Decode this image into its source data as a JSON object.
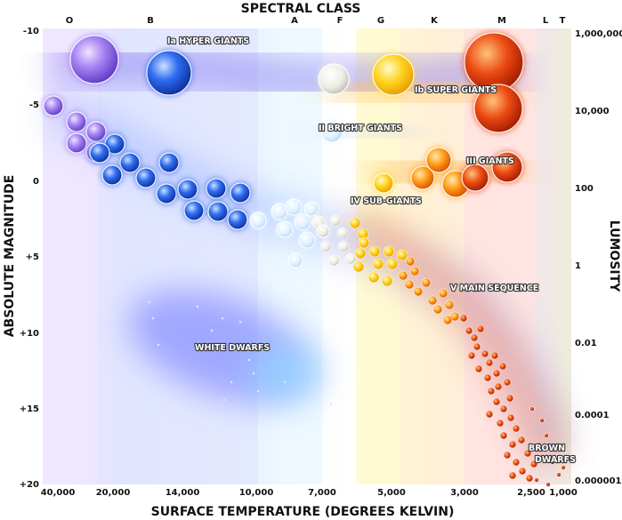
{
  "diagram": {
    "top_title": "SPECTRAL CLASS",
    "bottom_title": "SURFACE TEMPERATURE (DEGREES KELVIN)",
    "left_title": "ABSOLUTE MAGNITUDE",
    "right_title": "LUMOSITY",
    "spectral_classes": [
      "O",
      "B",
      "A",
      "F",
      "G",
      "K",
      "M",
      "L",
      "T"
    ],
    "temperature_ticks": [
      "40,000",
      "20,000",
      "14,000",
      "10,000",
      "7,000",
      "5,000",
      "3,000",
      "2,500",
      "1,000"
    ],
    "magnitude_ticks": [
      "-10",
      "-5",
      "0",
      "+5",
      "+10",
      "+15",
      "+20"
    ],
    "luminosity_ticks": [
      "1,000,000",
      "10,000",
      "100",
      "1",
      "0.01",
      "0.0001",
      "0.000001"
    ],
    "regions": {
      "hyper_giants": "Ia HYPER GIANTS",
      "super_giants": "Ib SUPER GIANTS",
      "bright_giants": "II BRIGHT GIANTS",
      "giants": "III GIANTS",
      "sub_giants": "IV SUB-GIANTS",
      "main_sequence": "V MAIN SEQUENCE",
      "white_dwarfs": "WHITE DWARFS",
      "brown_dwarfs_line1": "BROWN",
      "brown_dwarfs_line2": "DWARFS"
    },
    "colors": {
      "O": "#9a72ee",
      "B": "#2b5fe0",
      "A": "#e6f4ff",
      "F": "#f2f2ec",
      "G": "#ffd21e",
      "K": "#ff9a14",
      "M": "#e63a10",
      "brown": "#b82a0c"
    }
  }
}
